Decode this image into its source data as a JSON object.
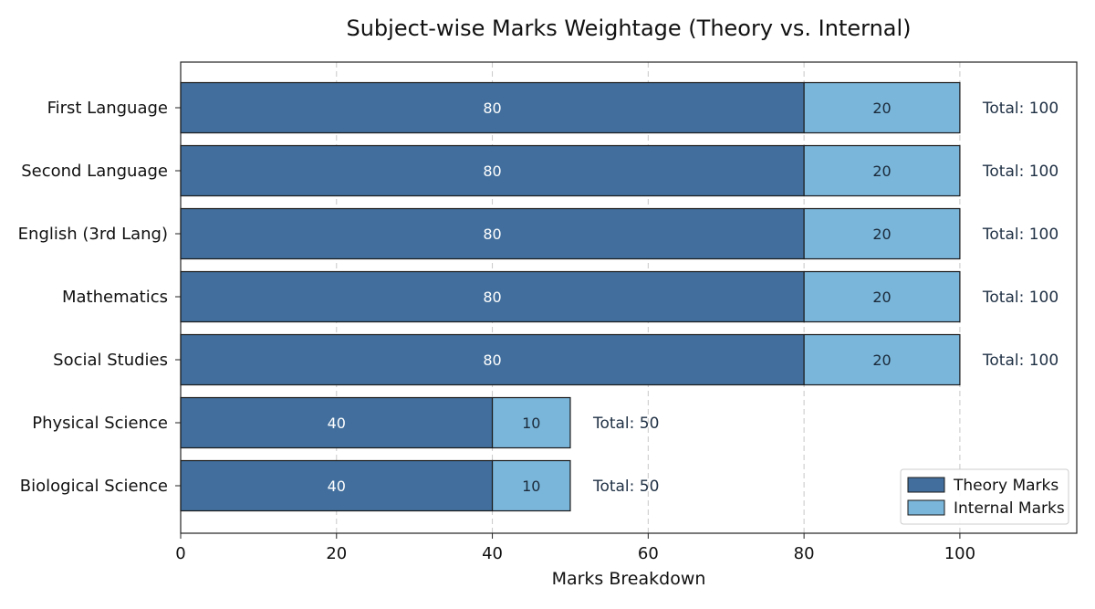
{
  "chart_data": {
    "type": "bar",
    "orientation": "horizontal",
    "stacked": true,
    "title": "Subject-wise Marks Weightage (Theory vs. Internal)",
    "xlabel": "Marks Breakdown",
    "ylabel": "",
    "xlim": [
      0,
      115
    ],
    "xticks": [
      0,
      20,
      40,
      60,
      80,
      100
    ],
    "grid": "vertical-dashed",
    "legend_position": "bottom-right",
    "categories": [
      "First Language",
      "Second Language",
      "English (3rd Lang)",
      "Mathematics",
      "Social Studies",
      "Physical Science",
      "Biological Science"
    ],
    "series": [
      {
        "name": "Theory Marks",
        "color": "#416e9c",
        "values": [
          80,
          80,
          80,
          80,
          80,
          40,
          40
        ]
      },
      {
        "name": "Internal Marks",
        "color": "#7ab6da",
        "values": [
          20,
          20,
          20,
          20,
          20,
          10,
          10
        ]
      }
    ],
    "total_labels": [
      "Total: 100",
      "Total: 100",
      "Total: 100",
      "Total: 100",
      "Total: 100",
      "Total: 50",
      "Total: 50"
    ]
  }
}
